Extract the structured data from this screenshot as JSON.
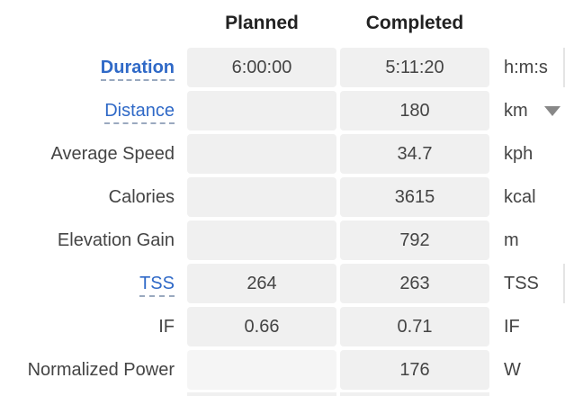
{
  "headers": {
    "planned": "Planned",
    "completed": "Completed"
  },
  "rows": [
    {
      "label": "Duration",
      "planned": "6:00:00",
      "completed": "5:11:20",
      "unit": "h:m:s"
    },
    {
      "label": "Distance",
      "planned": "",
      "completed": "180",
      "unit": "km"
    },
    {
      "label": "Average Speed",
      "planned": "",
      "completed": "34.7",
      "unit": "kph"
    },
    {
      "label": "Calories",
      "planned": "",
      "completed": "3615",
      "unit": "kcal"
    },
    {
      "label": "Elevation Gain",
      "planned": "",
      "completed": "792",
      "unit": "m"
    },
    {
      "label": "TSS",
      "planned": "264",
      "completed": "263",
      "unit": "TSS"
    },
    {
      "label": "IF",
      "planned": "0.66",
      "completed": "0.71",
      "unit": "IF"
    },
    {
      "label": "Normalized Power",
      "planned": "",
      "completed": "176",
      "unit": "W"
    }
  ],
  "colors": {
    "link": "#2f69c7",
    "cell_bg": "#f0f0f0",
    "text": "#444444"
  },
  "icons": {
    "unit_dropdown": "caret-down-icon"
  }
}
